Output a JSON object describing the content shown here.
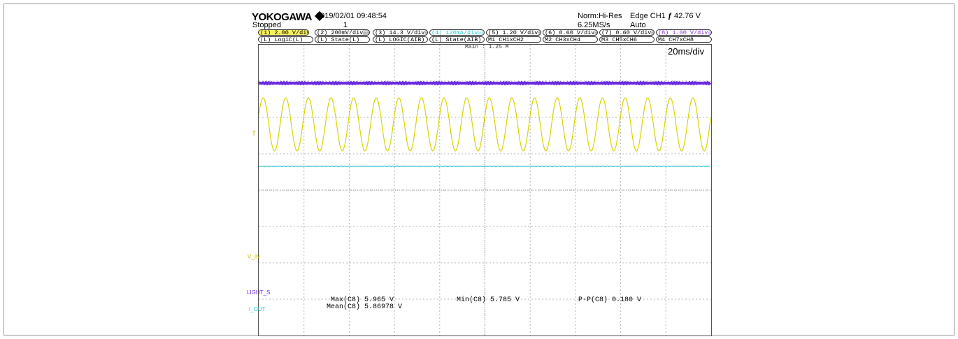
{
  "header": {
    "brand": "YOKOGAWA",
    "datetime": "2019/02/01 09:48:54",
    "status": "Stopped",
    "count": "1",
    "acq_mode": "Norm:Hi-Res",
    "sample_rate": "6.25MS/s",
    "trigger_label": "Edge CH1",
    "trigger_symbol": "ƒ",
    "trigger_level": "42.76 V",
    "trigger_mode": "Auto"
  },
  "channels_row1": [
    {
      "label": "(1) 2.00 V/div▒▒",
      "color": "#f7f25a"
    },
    {
      "label": "(2) 200mV/div▒▒",
      "color": "#ffffff"
    },
    {
      "label": "(3) 14.3 V/div▒▒",
      "color": "#ffffff"
    },
    {
      "label": "(4) 120mA/div▒▒",
      "color": "#28c6d2"
    },
    {
      "label": "(5) 1.20 V/div▒▒",
      "color": "#ffffff"
    },
    {
      "label": "(6) 0.60 V/div▒▒",
      "color": "#ffffff"
    },
    {
      "label": "(7) 0.60 V/div▒▒",
      "color": "#ffffff"
    },
    {
      "label": "(8) 1.00 V/div▒▒",
      "color": "#8a2be2"
    }
  ],
  "channels_row2": [
    {
      "label": "(L) LogiC(L)"
    },
    {
      "label": "(L) State(L)"
    },
    {
      "label": "(L) LOGIC(AIB)"
    },
    {
      "label": "(L) State(AIB)"
    },
    {
      "label": "M1 CH1xCH2"
    },
    {
      "label": "M2 CH3xCH4"
    },
    {
      "label": "M3 CH5xCH6"
    },
    {
      "label": "M4 CH7xCH8"
    }
  ],
  "plot": {
    "main_label": "Main : 1.25 M",
    "time_div": "20ms/div",
    "grid_divisions_x": 10,
    "grid_divisions_y": 8,
    "colors": {
      "grid": "#b5b5b5",
      "ch1": "#d8d400",
      "ch4": "#28c6d2",
      "ch8": "#6a2be0"
    },
    "ch1_cycles": 20
  },
  "side_labels": {
    "trig_mark": "T",
    "vin": "V_IN",
    "light": "LIGHT_S",
    "iout": "I_OUT"
  },
  "measurements": {
    "max_label": "Max(C8)",
    "max_value": "5.965 V",
    "mean_label": "Mean(C8)",
    "mean_value": "5.86978 V",
    "min_label": "Min(C8)",
    "min_value": "5.785 V",
    "pp_label": "P-P(C8)",
    "pp_value": "0.180 V"
  }
}
